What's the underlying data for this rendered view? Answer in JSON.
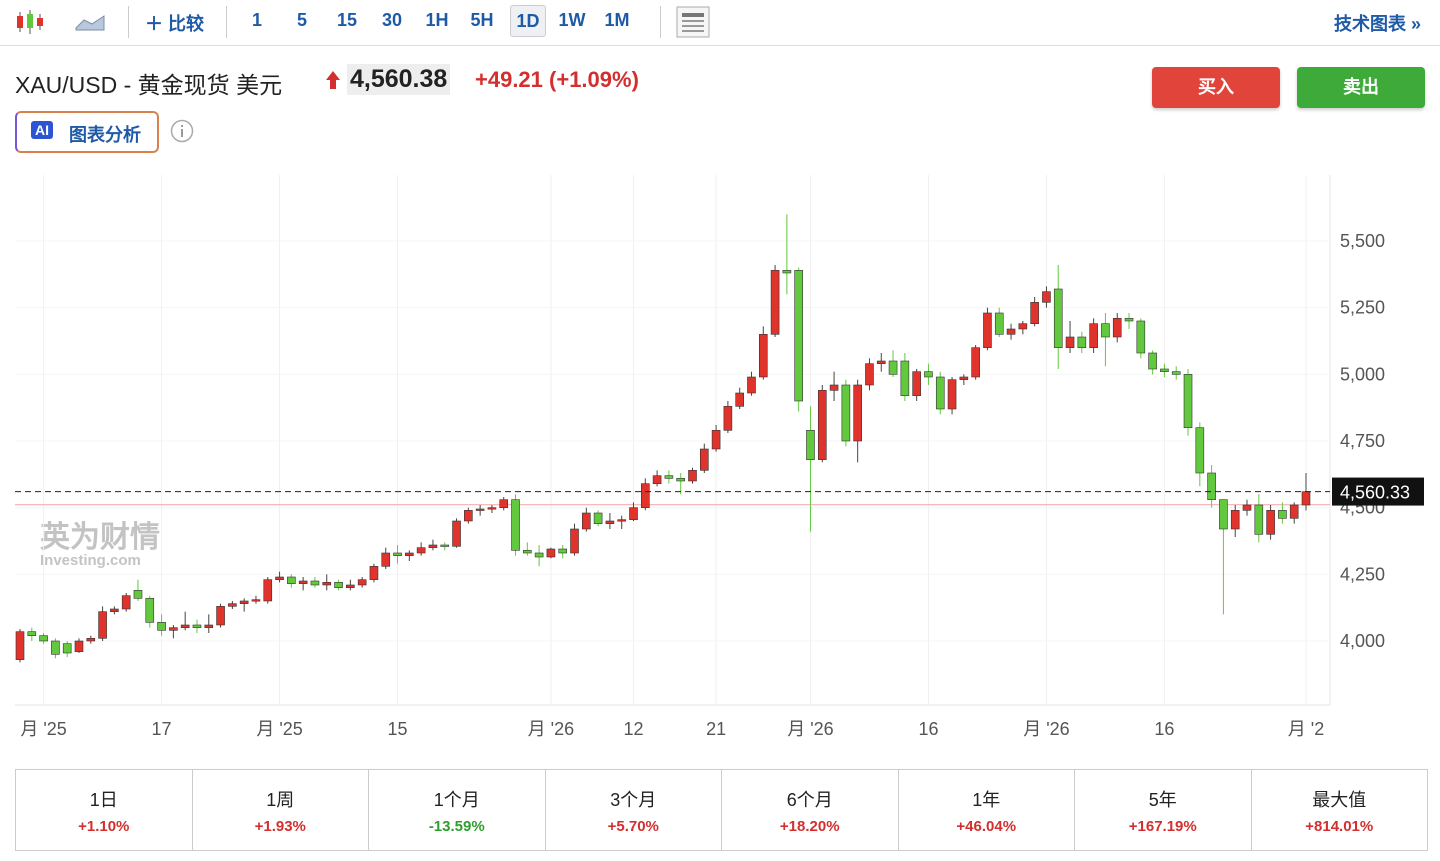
{
  "toolbar": {
    "compare": "比较",
    "intervals": [
      "1",
      "5",
      "15",
      "30",
      "1H",
      "5H",
      "1D",
      "1W",
      "1M"
    ],
    "selected_interval": "1D",
    "tech_chart": "技术图表 »"
  },
  "header": {
    "symbol": "XAU/USD - 黄金现货 美元",
    "price": "4,560.38",
    "change": "+49.21 (+1.09%)",
    "ai_badge": "AI",
    "ai_button": "图表分析",
    "buy": "买入",
    "sell": "卖出"
  },
  "chart_data": {
    "type": "candlestick",
    "up_color": "#e0332c",
    "down_color": "#62c93f",
    "grid": true,
    "watermark": [
      "英为财情",
      "Investing.com"
    ],
    "ylim": [
      3760,
      5747.5
    ],
    "yticks": [
      {
        "value": 4000,
        "label": "4,000"
      },
      {
        "value": 4250,
        "label": "4,250"
      },
      {
        "value": 4500,
        "label": "4,500"
      },
      {
        "value": 4750,
        "label": "4,750"
      },
      {
        "value": 5000,
        "label": "5,000"
      },
      {
        "value": 5250,
        "label": "5,250"
      },
      {
        "value": 5500,
        "label": "5,500"
      }
    ],
    "last_price": {
      "value": 4560.33,
      "label": "4,560.33"
    },
    "reference_line": 4511,
    "categories": [
      null,
      null,
      "月 '25",
      null,
      null,
      null,
      null,
      null,
      null,
      null,
      null,
      null,
      "17",
      null,
      null,
      null,
      null,
      null,
      null,
      null,
      null,
      null,
      "月 '25",
      null,
      null,
      null,
      null,
      null,
      null,
      null,
      null,
      null,
      "15",
      null,
      null,
      null,
      null,
      null,
      null,
      null,
      null,
      null,
      null,
      null,
      null,
      "月 '26",
      null,
      null,
      null,
      null,
      null,
      null,
      "12",
      null,
      null,
      null,
      null,
      null,
      null,
      "21",
      null,
      null,
      null,
      null,
      null,
      null,
      null,
      "月 '26",
      null,
      null,
      null,
      null,
      null,
      null,
      null,
      null,
      null,
      "16",
      null,
      null,
      null,
      null,
      null,
      null,
      null,
      null,
      null,
      "月 '26",
      null,
      null,
      null,
      null,
      null,
      null,
      null,
      null,
      null,
      "16",
      null,
      null,
      null,
      null,
      null,
      null,
      null,
      null,
      null,
      null,
      null,
      "月 '2"
    ],
    "ohlc": [
      [
        3930,
        4045,
        3920,
        4035
      ],
      [
        4035,
        4050,
        4000,
        4020
      ],
      [
        4020,
        4030,
        3990,
        4000
      ],
      [
        4000,
        4010,
        3935,
        3950
      ],
      [
        3990,
        4000,
        3940,
        3955
      ],
      [
        3960,
        4010,
        3955,
        4000
      ],
      [
        4000,
        4020,
        3990,
        4010
      ],
      [
        4010,
        4130,
        4000,
        4110
      ],
      [
        4110,
        4130,
        4100,
        4120
      ],
      [
        4120,
        4180,
        4110,
        4170
      ],
      [
        4190,
        4230,
        4150,
        4160
      ],
      [
        4160,
        4170,
        4050,
        4070
      ],
      [
        4070,
        4100,
        4020,
        4040
      ],
      [
        4040,
        4060,
        4010,
        4050
      ],
      [
        4050,
        4110,
        4040,
        4060
      ],
      [
        4060,
        4080,
        4030,
        4050
      ],
      [
        4050,
        4100,
        4030,
        4060
      ],
      [
        4060,
        4140,
        4050,
        4130
      ],
      [
        4130,
        4150,
        4120,
        4140
      ],
      [
        4140,
        4160,
        4110,
        4150
      ],
      [
        4150,
        4170,
        4140,
        4155
      ],
      [
        4150,
        4240,
        4140,
        4230
      ],
      [
        4230,
        4260,
        4220,
        4240
      ],
      [
        4240,
        4250,
        4200,
        4215
      ],
      [
        4215,
        4240,
        4190,
        4225
      ],
      [
        4225,
        4240,
        4200,
        4210
      ],
      [
        4210,
        4250,
        4190,
        4220
      ],
      [
        4220,
        4230,
        4190,
        4200
      ],
      [
        4200,
        4230,
        4190,
        4210
      ],
      [
        4210,
        4240,
        4200,
        4230
      ],
      [
        4230,
        4290,
        4220,
        4280
      ],
      [
        4280,
        4350,
        4270,
        4330
      ],
      [
        4330,
        4360,
        4290,
        4320
      ],
      [
        4320,
        4340,
        4300,
        4330
      ],
      [
        4330,
        4370,
        4320,
        4350
      ],
      [
        4350,
        4380,
        4340,
        4360
      ],
      [
        4360,
        4370,
        4340,
        4355
      ],
      [
        4355,
        4460,
        4350,
        4450
      ],
      [
        4450,
        4500,
        4440,
        4490
      ],
      [
        4490,
        4510,
        4470,
        4495
      ],
      [
        4495,
        4510,
        4480,
        4500
      ],
      [
        4500,
        4540,
        4490,
        4530
      ],
      [
        4530,
        4550,
        4320,
        4340
      ],
      [
        4340,
        4370,
        4320,
        4330
      ],
      [
        4330,
        4360,
        4280,
        4315
      ],
      [
        4315,
        4350,
        4310,
        4345
      ],
      [
        4345,
        4360,
        4310,
        4330
      ],
      [
        4330,
        4440,
        4320,
        4420
      ],
      [
        4420,
        4500,
        4410,
        4480
      ],
      [
        4480,
        4490,
        4430,
        4440
      ],
      [
        4440,
        4480,
        4420,
        4450
      ],
      [
        4450,
        4470,
        4420,
        4455
      ],
      [
        4455,
        4520,
        4450,
        4500
      ],
      [
        4500,
        4610,
        4490,
        4590
      ],
      [
        4590,
        4640,
        4580,
        4620
      ],
      [
        4620,
        4640,
        4590,
        4610
      ],
      [
        4610,
        4630,
        4550,
        4600
      ],
      [
        4600,
        4650,
        4590,
        4640
      ],
      [
        4640,
        4740,
        4630,
        4720
      ],
      [
        4720,
        4810,
        4710,
        4790
      ],
      [
        4790,
        4900,
        4780,
        4880
      ],
      [
        4880,
        4950,
        4870,
        4930
      ],
      [
        4930,
        5010,
        4920,
        4990
      ],
      [
        4990,
        5180,
        4980,
        5150
      ],
      [
        5150,
        5410,
        5140,
        5390
      ],
      [
        5390,
        5600,
        5300,
        5380
      ],
      [
        5390,
        5400,
        4860,
        4900
      ],
      [
        4790,
        4880,
        4410,
        4680
      ],
      [
        4680,
        4960,
        4670,
        4940
      ],
      [
        4940,
        5010,
        4900,
        4960
      ],
      [
        4960,
        4980,
        4730,
        4750
      ],
      [
        4750,
        4980,
        4670,
        4960
      ],
      [
        4960,
        5060,
        4940,
        5040
      ],
      [
        5040,
        5080,
        5010,
        5050
      ],
      [
        5050,
        5090,
        4990,
        5000
      ],
      [
        5050,
        5080,
        4900,
        4920
      ],
      [
        4920,
        5020,
        4900,
        5010
      ],
      [
        5010,
        5040,
        4960,
        4990
      ],
      [
        4990,
        5010,
        4850,
        4870
      ],
      [
        4870,
        4990,
        4850,
        4980
      ],
      [
        4980,
        5000,
        4960,
        4990
      ],
      [
        4990,
        5110,
        4980,
        5100
      ],
      [
        5100,
        5250,
        5090,
        5230
      ],
      [
        5230,
        5250,
        5140,
        5150
      ],
      [
        5150,
        5190,
        5130,
        5170
      ],
      [
        5170,
        5200,
        5150,
        5190
      ],
      [
        5190,
        5290,
        5180,
        5270
      ],
      [
        5270,
        5330,
        5250,
        5310
      ],
      [
        5320,
        5410,
        5020,
        5100
      ],
      [
        5100,
        5200,
        5080,
        5140
      ],
      [
        5140,
        5160,
        5080,
        5100
      ],
      [
        5100,
        5210,
        5080,
        5190
      ],
      [
        5190,
        5230,
        5030,
        5140
      ],
      [
        5140,
        5230,
        5120,
        5210
      ],
      [
        5210,
        5230,
        5170,
        5200
      ],
      [
        5200,
        5210,
        5060,
        5080
      ],
      [
        5080,
        5090,
        5000,
        5020
      ],
      [
        5020,
        5040,
        4990,
        5010
      ],
      [
        5010,
        5030,
        4980,
        5000
      ],
      [
        5000,
        5020,
        4770,
        4800
      ],
      [
        4800,
        4820,
        4580,
        4630
      ],
      [
        4630,
        4660,
        4500,
        4530
      ],
      [
        4530,
        4530,
        4100,
        4420
      ],
      [
        4420,
        4510,
        4390,
        4490
      ],
      [
        4490,
        4530,
        4470,
        4510
      ],
      [
        4510,
        4550,
        4370,
        4400
      ],
      [
        4400,
        4510,
        4380,
        4490
      ],
      [
        4490,
        4520,
        4440,
        4460
      ],
      [
        4460,
        4520,
        4440,
        4510
      ],
      [
        4510,
        4630,
        4490,
        4560
      ]
    ]
  },
  "performance": [
    {
      "period": "1日",
      "change": "+1.10%"
    },
    {
      "period": "1周",
      "change": "+1.93%"
    },
    {
      "period": "1个月",
      "change": "-13.59%"
    },
    {
      "period": "3个月",
      "change": "+5.70%"
    },
    {
      "period": "6个月",
      "change": "+18.20%"
    },
    {
      "period": "1年",
      "change": "+46.04%"
    },
    {
      "period": "5年",
      "change": "+167.19%"
    },
    {
      "period": "最大值",
      "change": "+814.01%"
    }
  ]
}
